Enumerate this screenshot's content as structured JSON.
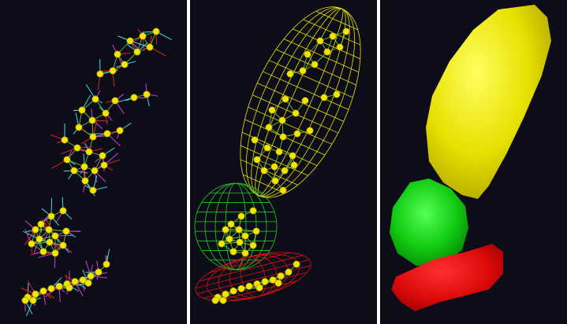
{
  "figure": {
    "panels": [
      {
        "id": "point-cloud-normals",
        "background": "#0d0d1a"
      },
      {
        "id": "wireframe-hulls",
        "background": "#0d0d1a"
      },
      {
        "id": "shaded-surfaces",
        "background": "#0d0d1a"
      }
    ],
    "colors": {
      "node": "#f2e600",
      "edge": "#6ec23a",
      "normal_cyan": "#3fd8e0",
      "normal_magenta": "#d23cd8",
      "normal_red": "#e02020",
      "hull_yellow": "#e8e400",
      "hull_green": "#22cc22",
      "hull_red": "#dd1111"
    }
  }
}
